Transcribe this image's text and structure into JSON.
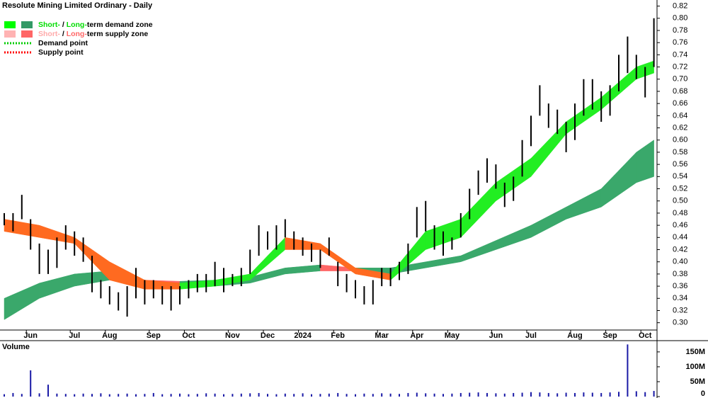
{
  "chart_data": [
    {
      "type": "range",
      "title": "Resolute Mining Limited Ordinary - Daily",
      "categories": [
        null,
        null,
        null,
        "Jun",
        null,
        null,
        null,
        null,
        "Jul",
        null,
        null,
        null,
        "Aug",
        null,
        null,
        null,
        null,
        "Sep",
        null,
        null,
        null,
        "Oct",
        null,
        null,
        null,
        null,
        "Nov",
        null,
        null,
        null,
        "Dec",
        null,
        null,
        null,
        "2024",
        null,
        null,
        null,
        "Feb",
        null,
        null,
        null,
        null,
        "Mar",
        null,
        null,
        null,
        "Apr",
        null,
        null,
        null,
        "May",
        null,
        null,
        null,
        null,
        "Jun",
        null,
        null,
        null,
        "Jul",
        null,
        null,
        null,
        null,
        "Aug",
        null,
        null,
        null,
        "Sep",
        null,
        null,
        null,
        "Oct",
        null
      ],
      "high": [
        0.48,
        0.48,
        0.51,
        0.47,
        0.43,
        0.42,
        0.44,
        0.46,
        0.45,
        0.44,
        0.41,
        0.37,
        0.36,
        0.35,
        0.36,
        0.39,
        0.37,
        0.37,
        0.36,
        0.36,
        0.36,
        0.37,
        0.38,
        0.38,
        0.4,
        0.39,
        0.38,
        0.39,
        0.42,
        0.46,
        0.45,
        0.46,
        0.47,
        0.45,
        0.44,
        0.43,
        0.42,
        0.44,
        0.4,
        0.38,
        0.37,
        0.36,
        0.37,
        0.39,
        0.39,
        0.4,
        0.43,
        0.49,
        0.5,
        0.46,
        0.45,
        0.44,
        0.48,
        0.52,
        0.55,
        0.57,
        0.56,
        0.53,
        0.54,
        0.6,
        0.64,
        0.69,
        0.66,
        0.65,
        0.63,
        0.66,
        0.7,
        0.7,
        0.68,
        0.69,
        0.74,
        0.77,
        0.74,
        0.72,
        0.8
      ],
      "low": [
        0.46,
        0.45,
        0.47,
        0.42,
        0.38,
        0.38,
        0.39,
        0.42,
        0.41,
        0.4,
        0.35,
        0.34,
        0.33,
        0.32,
        0.31,
        0.34,
        0.33,
        0.34,
        0.33,
        0.32,
        0.33,
        0.34,
        0.35,
        0.35,
        0.36,
        0.35,
        0.36,
        0.36,
        0.38,
        0.41,
        0.42,
        0.42,
        0.44,
        0.42,
        0.41,
        0.4,
        0.39,
        0.41,
        0.36,
        0.35,
        0.34,
        0.33,
        0.33,
        0.36,
        0.36,
        0.37,
        0.38,
        0.44,
        0.45,
        0.42,
        0.41,
        0.42,
        0.44,
        0.47,
        0.51,
        0.53,
        0.52,
        0.49,
        0.5,
        0.54,
        0.59,
        0.64,
        0.62,
        0.61,
        0.58,
        0.6,
        0.64,
        0.65,
        0.63,
        0.64,
        0.68,
        0.71,
        0.7,
        0.67,
        0.72
      ],
      "color": "#000000",
      "zones": [
        {
          "x": [
            0,
            4,
            8,
            12,
            16,
            20,
            24,
            28,
            32,
            36,
            40,
            44,
            48,
            52,
            56,
            60,
            64,
            68,
            72,
            74
          ],
          "upper": [
            0.34,
            0.365,
            0.38,
            0.385,
            0.37,
            0.368,
            0.37,
            0.375,
            0.39,
            0.395,
            0.39,
            0.39,
            0.4,
            0.41,
            0.435,
            0.46,
            0.49,
            0.52,
            0.58,
            0.6
          ],
          "lower": [
            0.305,
            0.34,
            0.36,
            0.37,
            0.36,
            0.357,
            0.36,
            0.365,
            0.38,
            0.385,
            0.385,
            0.38,
            0.39,
            0.4,
            0.42,
            0.44,
            0.47,
            0.49,
            0.53,
            0.54
          ],
          "demand_color": "#3aa86b",
          "supply_color": "#ff6666"
        },
        {
          "x": [
            0,
            4,
            8,
            12,
            16,
            20,
            24,
            28,
            32,
            36,
            40,
            44,
            48,
            52,
            56,
            60,
            64,
            68,
            72,
            74
          ],
          "upper": [
            0.47,
            0.46,
            0.44,
            0.4,
            0.37,
            0.365,
            0.37,
            0.38,
            0.44,
            0.43,
            0.39,
            0.38,
            0.45,
            0.47,
            0.53,
            0.57,
            0.63,
            0.67,
            0.72,
            0.73
          ],
          "lower": [
            0.45,
            0.44,
            0.43,
            0.37,
            0.355,
            0.355,
            0.36,
            0.37,
            0.42,
            0.42,
            0.38,
            0.37,
            0.42,
            0.44,
            0.5,
            0.54,
            0.61,
            0.65,
            0.7,
            0.71
          ],
          "demand_color": "#22ee22",
          "supply_color": "#ff6a20"
        }
      ],
      "legend": [
        {
          "swatches": [
            "#00ff00",
            "#339966"
          ],
          "parts": [
            "Short-",
            " / ",
            "Long-",
            "term demand zone"
          ],
          "part_colors": [
            "#00dd00",
            "#000000",
            "#00dd00",
            "#000000"
          ]
        },
        {
          "swatches": [
            "#ffb3b3",
            "#ff6666"
          ],
          "parts": [
            "Short-",
            " / ",
            "Long-",
            "term supply zone"
          ],
          "part_colors": [
            "#ffaaaa",
            "#000000",
            "#ff6666",
            "#000000"
          ]
        },
        {
          "line": "#00cc00",
          "parts": [
            "Demand point"
          ],
          "part_colors": [
            "#000000"
          ]
        },
        {
          "line": "#ff0000",
          "parts": [
            "Supply point"
          ],
          "part_colors": [
            "#000000"
          ]
        }
      ],
      "ylim": [
        0.288,
        0.83
      ],
      "yticks": [
        {
          "value": 0.3,
          "label": "0.30"
        },
        {
          "value": 0.32,
          "label": "0.32"
        },
        {
          "value": 0.34,
          "label": "0.34"
        },
        {
          "value": 0.36,
          "label": "0.36"
        },
        {
          "value": 0.38,
          "label": "0.38"
        },
        {
          "value": 0.4,
          "label": "0.40"
        },
        {
          "value": 0.42,
          "label": "0.42"
        },
        {
          "value": 0.44,
          "label": "0.44"
        },
        {
          "value": 0.46,
          "label": "0.46"
        },
        {
          "value": 0.48,
          "label": "0.48"
        },
        {
          "value": 0.5,
          "label": "0.50"
        },
        {
          "value": 0.52,
          "label": "0.52"
        },
        {
          "value": 0.54,
          "label": "0.54"
        },
        {
          "value": 0.56,
          "label": "0.56"
        },
        {
          "value": 0.58,
          "label": "0.58"
        },
        {
          "value": 0.6,
          "label": "0.60"
        },
        {
          "value": 0.62,
          "label": "0.62"
        },
        {
          "value": 0.64,
          "label": "0.64"
        },
        {
          "value": 0.66,
          "label": "0.66"
        },
        {
          "value": 0.68,
          "label": "0.68"
        },
        {
          "value": 0.7,
          "label": "0.70"
        },
        {
          "value": 0.72,
          "label": "0.72"
        },
        {
          "value": 0.74,
          "label": "0.74"
        },
        {
          "value": 0.76,
          "label": "0.76"
        },
        {
          "value": 0.78,
          "label": "0.78"
        },
        {
          "value": 0.8,
          "label": "0.80"
        },
        {
          "value": 0.82,
          "label": "0.82"
        }
      ]
    },
    {
      "type": "bar",
      "title": "Volume",
      "values": [
        8000000.0,
        12000000.0,
        9000000.0,
        88000000.0,
        11000000.0,
        40000000.0,
        10000000.0,
        9000000.0,
        8000000.0,
        10000000.0,
        9000000.0,
        11000000.0,
        8000000.0,
        9000000.0,
        10000000.0,
        8000000.0,
        9000000.0,
        12000000.0,
        8000000.0,
        9000000.0,
        10000000.0,
        8000000.0,
        9000000.0,
        11000000.0,
        10000000.0,
        8000000.0,
        9000000.0,
        10000000.0,
        11000000.0,
        12000000.0,
        9000000.0,
        8000000.0,
        10000000.0,
        9000000.0,
        11000000.0,
        8000000.0,
        9000000.0,
        10000000.0,
        12000000.0,
        9000000.0,
        8000000.0,
        10000000.0,
        9000000.0,
        11000000.0,
        10000000.0,
        9000000.0,
        12000000.0,
        13000000.0,
        11000000.0,
        10000000.0,
        9000000.0,
        10000000.0,
        12000000.0,
        13000000.0,
        14000000.0,
        12000000.0,
        11000000.0,
        10000000.0,
        12000000.0,
        13000000.0,
        15000000.0,
        14000000.0,
        12000000.0,
        11000000.0,
        13000000.0,
        12000000.0,
        14000000.0,
        13000000.0,
        12000000.0,
        14000000.0,
        16000000.0,
        175000000.0,
        18000000.0,
        15000000.0,
        19000000.0
      ],
      "color": "#1a1aa6",
      "title_color": "#660099",
      "ylim": [
        0,
        183000000.0
      ],
      "yticks": [
        0,
        {
          "value": 50000000.0,
          "label": "50M"
        },
        {
          "value": 100000000.0,
          "label": "100M"
        },
        {
          "value": 150000000.0,
          "label": "150M"
        }
      ]
    }
  ]
}
